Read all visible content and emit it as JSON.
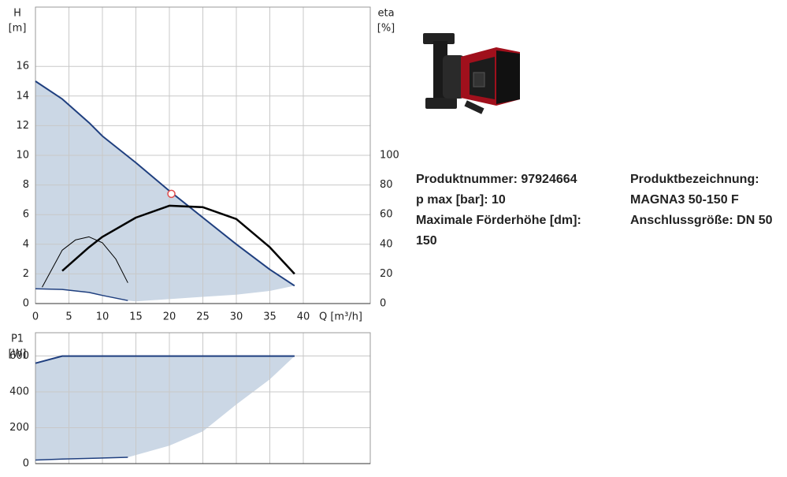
{
  "chart_data": [
    {
      "type": "line",
      "y_label": "H",
      "y_unit": "[m]",
      "y2_label": "eta",
      "y2_unit": "[%]",
      "x_label": "Q [m³/h]",
      "xlim": [
        0,
        50
      ],
      "xticks": [
        0,
        5,
        10,
        15,
        20,
        25,
        30,
        35,
        40
      ],
      "x_tick_labels": true,
      "ylim": [
        0,
        20
      ],
      "yticks": [
        0,
        2,
        4,
        6,
        8,
        10,
        12,
        14,
        16
      ],
      "y2lim": [
        0,
        200
      ],
      "y2ticks": [
        0,
        20,
        40,
        60,
        80,
        100
      ],
      "grid": true,
      "area": {
        "color": "#cbd7e5",
        "x": [
          0,
          4,
          8,
          10,
          13.8,
          15,
          20,
          25,
          30,
          35,
          38.7
        ],
        "upper": [
          15,
          13.8,
          12.2,
          11.3,
          9.9,
          9.5,
          7.6,
          5.8,
          4.0,
          2.3,
          1.2
        ],
        "lower": [
          1,
          0.95,
          0.75,
          0.55,
          0.2,
          0.15,
          0.3,
          0.45,
          0.6,
          0.85,
          1.2
        ]
      },
      "series": [
        {
          "color": "#1f3f7f",
          "line_width": 2,
          "x": [
            0,
            4,
            8,
            10,
            15,
            20,
            25,
            30,
            35,
            38.7
          ],
          "values": [
            15,
            13.8,
            12.2,
            11.3,
            9.5,
            7.6,
            5.8,
            4.0,
            2.3,
            1.2
          ]
        },
        {
          "color": "#1f3f7f",
          "line_width": 1.5,
          "x": [
            0,
            4,
            8,
            10,
            13.8
          ],
          "values": [
            1,
            0.95,
            0.75,
            0.55,
            0.2
          ]
        },
        {
          "color": "#000000",
          "line_width": 2.5,
          "axis": "y2",
          "x": [
            4,
            8,
            10,
            15,
            20,
            25,
            30,
            35,
            38.7
          ],
          "values": [
            22,
            38,
            45,
            58,
            66,
            65,
            57,
            38,
            20
          ]
        },
        {
          "color": "#000000",
          "line_width": 1,
          "axis": "y2",
          "x": [
            1,
            4,
            6,
            8,
            10,
            12,
            13.8
          ],
          "values": [
            11,
            36,
            43,
            45,
            41,
            30,
            14
          ]
        }
      ],
      "operating_point": {
        "x": 20.3,
        "value": 7.4,
        "color": "#e05050"
      }
    },
    {
      "type": "line",
      "y_label": "P1",
      "y_unit": "[W]",
      "xlim": [
        0,
        50
      ],
      "xticks": [
        0,
        5,
        10,
        15,
        20,
        25,
        30,
        35,
        40
      ],
      "x_tick_labels": false,
      "ylim": [
        0,
        730
      ],
      "yticks": [
        0,
        200,
        400,
        600
      ],
      "grid": true,
      "area": {
        "color": "#cbd7e5",
        "x": [
          0,
          4,
          13.8,
          20,
          25,
          30,
          35,
          38.7
        ],
        "upper": [
          560,
          600,
          600,
          600,
          600,
          600,
          600,
          600
        ],
        "lower": [
          20,
          25,
          35,
          100,
          180,
          330,
          470,
          600
        ]
      },
      "series": [
        {
          "color": "#1f3f7f",
          "line_width": 2,
          "x": [
            0,
            4,
            38.7
          ],
          "values": [
            560,
            600,
            600
          ]
        },
        {
          "color": "#1f3f7f",
          "line_width": 1.5,
          "x": [
            0,
            4,
            13.8
          ],
          "values": [
            20,
            25,
            35
          ]
        }
      ]
    }
  ],
  "product": {
    "left": [
      "Produktnummer: 97924664",
      "p max [bar]: 10",
      "Maximale Förderhöhe [dm]: 150"
    ],
    "right": [
      "Produktbezeichnung:",
      "MAGNA3 50-150 F",
      "Anschlussgröße: DN 50"
    ]
  }
}
